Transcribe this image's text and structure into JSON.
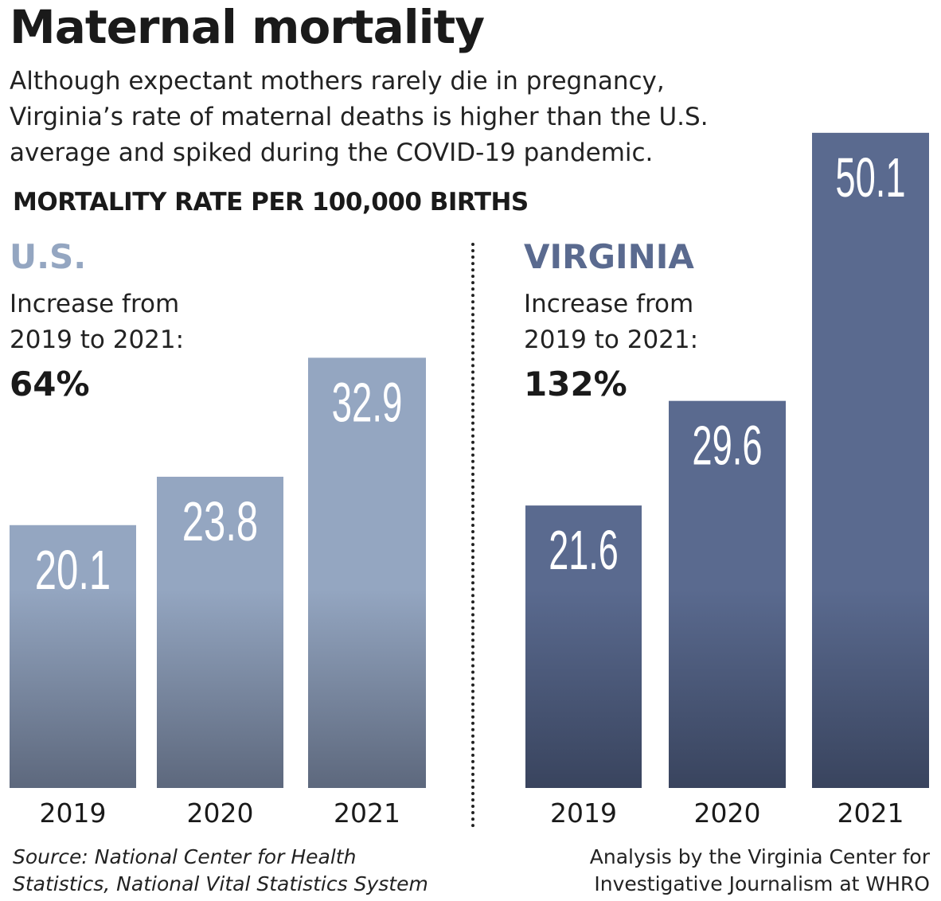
{
  "title": "Maternal mortality",
  "subtitle": "Although expectant mothers rarely die in pregnancy, Virginia’s rate of maternal deaths is higher than the U.S. average and spiked during the COVID-19 pandemic.",
  "unit_label": "MORTALITY RATE PER 100,000 BIRTHS",
  "source": "Source: National Center for Health Statistics, National Vital Statistics System",
  "source_lines": [
    "Source: National Center for Health",
    "Statistics, National Vital Statistics System"
  ],
  "credit_lines": [
    "Analysis by the Virginia Center for",
    "Investigative Journalism at WHRO"
  ],
  "panels": [
    {
      "name": "U.S.",
      "increase_lines": [
        "Increase from",
        "2019 to 2021:"
      ],
      "increase_pct": "64%",
      "color_top": "#94a6c1",
      "color_bottom": "#5d687d",
      "name_color": "#94a6c1"
    },
    {
      "name": "VIRGINIA",
      "increase_lines": [
        "Increase from",
        "2019 to 2021:"
      ],
      "increase_pct": "132%",
      "color_top": "#5a6a8f",
      "color_bottom": "#39445e",
      "name_color": "#5a6a8f"
    }
  ],
  "chart_data": [
    {
      "type": "bar",
      "title": "U.S.",
      "ylabel": "MORTALITY RATE PER 100,000 BIRTHS",
      "categories": [
        "2019",
        "2020",
        "2021"
      ],
      "values": [
        20.1,
        23.8,
        32.9
      ],
      "labels": [
        "20.1",
        "23.8",
        "32.9"
      ],
      "ylim": [
        0,
        50.1
      ],
      "grid": false
    },
    {
      "type": "bar",
      "title": "VIRGINIA",
      "ylabel": "MORTALITY RATE PER 100,000 BIRTHS",
      "categories": [
        "2019",
        "2020",
        "2021"
      ],
      "values": [
        21.6,
        29.6,
        50.1
      ],
      "labels": [
        "21.6",
        "29.6",
        "50.1"
      ],
      "ylim": [
        0,
        50.1
      ],
      "grid": false
    }
  ]
}
